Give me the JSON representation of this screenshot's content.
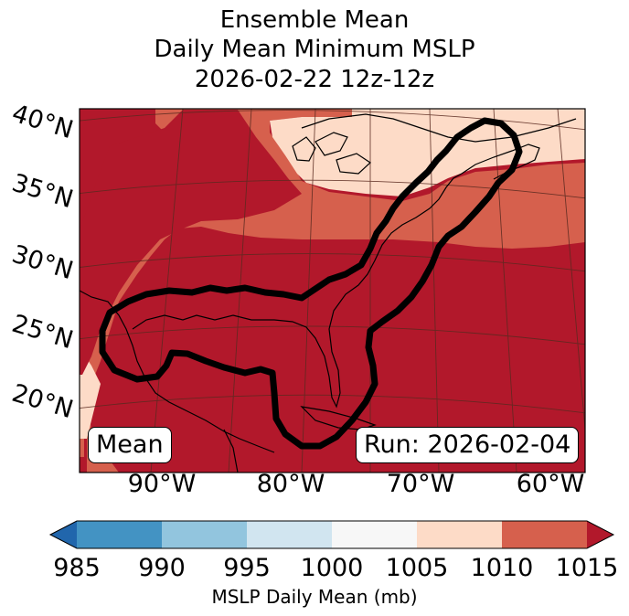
{
  "title": [
    "Ensemble Mean",
    "Daily Mean Minimum MSLP",
    "2026-02-22 12z-12z"
  ],
  "map": {
    "lat_labels": [
      "40°N",
      "35°N",
      "30°N",
      "25°N",
      "20°N"
    ],
    "lon_labels": [
      "90°W",
      "80°W",
      "70°W",
      "60°W"
    ],
    "left_box": "Mean",
    "right_box": "Run: 2026-02-04"
  },
  "colorbar": {
    "label": "MSLP Daily Mean (mb)",
    "ticks": [
      "985",
      "990",
      "995",
      "1000",
      "1005",
      "1010",
      "1015"
    ],
    "colors": {
      "below_985": "#2166ac",
      "985_990": "#4393c3",
      "990_995": "#92c5de",
      "995_1000": "#d1e5f0",
      "1000_1005": "#f7f7f7",
      "1005_1010": "#fddbc7",
      "1010_1015": "#d6604d",
      "above_1015": "#b2182b"
    },
    "extend": "both"
  }
}
